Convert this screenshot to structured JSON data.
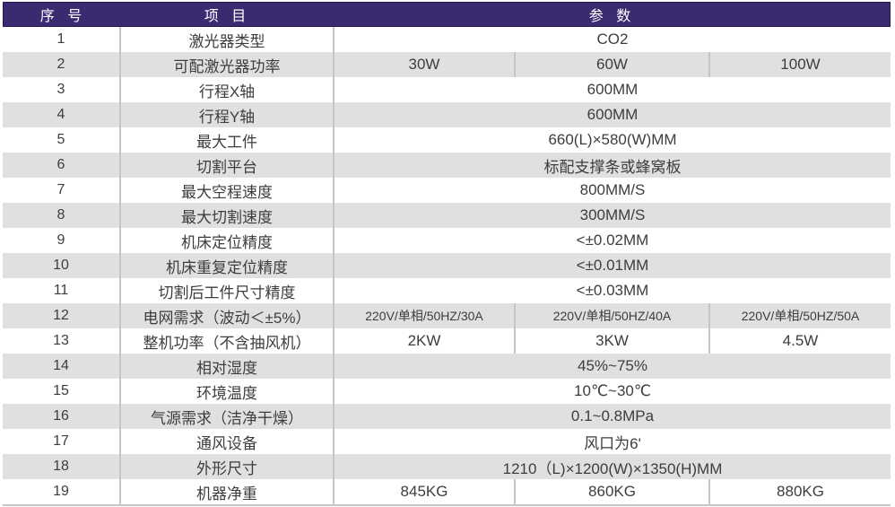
{
  "table": {
    "headers": {
      "index": "序 号",
      "item": "项 目",
      "params": "参 数"
    },
    "colors": {
      "header_bg": "#3B2A70",
      "header_border": "#241749",
      "header_text": "#FFFFFF",
      "stripe": "#E0E0E0",
      "divider": "#C6C6C6",
      "text": "#3D3D3D",
      "page_bg": "#FFFFFF"
    },
    "rows": [
      {
        "num": "1",
        "item": "激光器类型",
        "params": [
          "CO2"
        ]
      },
      {
        "num": "2",
        "item": "可配激光器功率",
        "params": [
          "30W",
          "60W",
          "100W"
        ]
      },
      {
        "num": "3",
        "item": "行程X轴",
        "params": [
          "600MM"
        ]
      },
      {
        "num": "4",
        "item": "行程Y轴",
        "params": [
          "600MM"
        ]
      },
      {
        "num": "5",
        "item": "最大工件",
        "params": [
          "660(L)×580(W)MM"
        ]
      },
      {
        "num": "6",
        "item": "切割平台",
        "params": [
          "标配支撑条或蜂窝板"
        ]
      },
      {
        "num": "7",
        "item": "最大空程速度",
        "params": [
          "800MM/S"
        ]
      },
      {
        "num": "8",
        "item": "最大切割速度",
        "params": [
          "300MM/S"
        ]
      },
      {
        "num": "9",
        "item": "机床定位精度",
        "params": [
          "<±0.02MM"
        ]
      },
      {
        "num": "10",
        "item": "机床重复定位精度",
        "params": [
          "<±0.01MM"
        ]
      },
      {
        "num": "11",
        "item": "切割后工件尺寸精度",
        "params": [
          "<±0.03MM"
        ]
      },
      {
        "num": "12",
        "item": "电网需求（波动＜±5%）",
        "params": [
          "220V/单相/50HZ/30A",
          "220V/单相/50HZ/40A",
          "220V/单相/50HZ/50A"
        ]
      },
      {
        "num": "13",
        "item": "整机功率（不含抽风机）",
        "params": [
          "2KW",
          "3KW",
          "4.5W"
        ]
      },
      {
        "num": "14",
        "item": "相对湿度",
        "params": [
          "45%~75%"
        ]
      },
      {
        "num": "15",
        "item": "环境温度",
        "params": [
          "10℃~30℃"
        ]
      },
      {
        "num": "16",
        "item": "气源需求（洁净干燥）",
        "params": [
          "0.1~0.8MPa"
        ]
      },
      {
        "num": "17",
        "item": "通风设备",
        "params": [
          "风口为6'"
        ]
      },
      {
        "num": "18",
        "item": "外形尺寸",
        "params": [
          "1210（L)×1200(W)×1350(H)MM"
        ]
      },
      {
        "num": "19",
        "item": "机器净重",
        "params": [
          "845KG",
          "860KG",
          "880KG"
        ]
      }
    ]
  }
}
